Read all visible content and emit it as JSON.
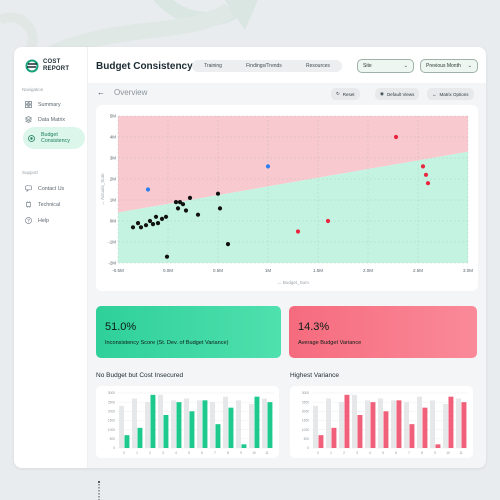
{
  "app": {
    "logo_line1": "COST",
    "logo_line2": "REPORT"
  },
  "sidebar": {
    "nav_title": "Navigation",
    "items": [
      {
        "label": "Summary",
        "icon": "grid-icon"
      },
      {
        "label": "Data Matrix",
        "icon": "stack-icon"
      },
      {
        "label_line1": "Budget",
        "label_line2": "Consistency",
        "icon": "circle-check-icon",
        "active": true
      }
    ],
    "support_title": "Support",
    "support_items": [
      {
        "label": "Contact Us",
        "icon": "chat-icon"
      },
      {
        "label": "Technical",
        "icon": "chip-icon"
      },
      {
        "label": "Help",
        "icon": "help-icon"
      }
    ]
  },
  "header": {
    "title": "Budget Consistency",
    "tabs": [
      "Training",
      "Findings/Trends",
      "Resources"
    ],
    "site_select": "Site",
    "period_select": "Previous Month"
  },
  "subheader": {
    "back_icon": "arrow-left-icon",
    "title": "Overview",
    "buttons": [
      {
        "label": "Reset",
        "icon": "refresh-icon"
      },
      {
        "label": "Default Views",
        "icon": "eye-icon"
      },
      {
        "label": "Matrix Options",
        "icon": "expand-icon"
      }
    ]
  },
  "chart_data": [
    {
      "type": "scatter",
      "xlabel": "Budget_Sum",
      "ylabel": "Actuals_Sum",
      "xticks": [
        "-0.5M",
        "0.0M",
        "0.5M",
        "1M",
        "1.5M",
        "2.0M",
        "2.5M",
        "3.0M"
      ],
      "yticks": [
        "5M",
        "4M",
        "3M",
        "2M",
        "1M",
        "0M",
        "-1M",
        "-2M"
      ],
      "xlim": [
        -0.5,
        3.0
      ],
      "ylim": [
        -2,
        5
      ],
      "grid": true,
      "regions": {
        "upper_color": "#f8c9cf",
        "lower_color": "#c4f3e1"
      },
      "boundary": {
        "x": [
          -0.5,
          3.0
        ],
        "y": [
          0.4,
          3.3
        ]
      },
      "series": [
        {
          "color": "#111111",
          "points": [
            [
              -0.35,
              -0.3
            ],
            [
              -0.3,
              -0.1
            ],
            [
              -0.27,
              -0.3
            ],
            [
              -0.22,
              -0.2
            ],
            [
              -0.18,
              0
            ],
            [
              -0.15,
              -0.15
            ],
            [
              -0.12,
              0.2
            ],
            [
              -0.1,
              -0.1
            ],
            [
              -0.06,
              0.1
            ],
            [
              -0.02,
              0.2
            ],
            [
              -0.01,
              -1.7
            ],
            [
              0.08,
              0.9
            ],
            [
              0.1,
              0.6
            ],
            [
              0.12,
              0.9
            ],
            [
              0.15,
              0.8
            ],
            [
              0.18,
              0.5
            ],
            [
              0.22,
              1.1
            ],
            [
              0.3,
              0.3
            ],
            [
              0.5,
              1.3
            ],
            [
              0.52,
              0.6
            ],
            [
              0.6,
              -1.1
            ]
          ]
        },
        {
          "color": "#2d7ff0",
          "points": [
            [
              -0.2,
              1.5
            ],
            [
              1.0,
              2.6
            ]
          ]
        },
        {
          "color": "#e8263d",
          "points": [
            [
              1.3,
              -0.5
            ],
            [
              1.6,
              0
            ],
            [
              2.28,
              4
            ],
            [
              2.55,
              2.6
            ],
            [
              2.58,
              2.2
            ],
            [
              2.6,
              1.8
            ]
          ]
        }
      ]
    },
    {
      "type": "bar",
      "title": "No Budget but Cost Insecured",
      "categories": [
        "0",
        "1",
        "2",
        "3",
        "4",
        "5",
        "6",
        "7",
        "8",
        "9",
        "10",
        "11"
      ],
      "yticks": [
        "3000",
        "2500",
        "2000",
        "1500",
        "1000",
        "500",
        "0"
      ],
      "ylim": [
        0,
        3000
      ],
      "series": [
        {
          "name": "",
          "color": "#e5e7e9",
          "values": [
            2300,
            2700,
            2500,
            2900,
            2600,
            2700,
            2600,
            2500,
            2800,
            2600,
            2400,
            2700
          ]
        },
        {
          "name": "",
          "color": "#1ec98e",
          "values": [
            700,
            1100,
            2900,
            1800,
            2500,
            2000,
            2600,
            1300,
            2200,
            200,
            2800,
            2500
          ]
        }
      ]
    },
    {
      "type": "bar",
      "title": "Highest Variance",
      "categories": [
        "0",
        "1",
        "2",
        "3",
        "4",
        "5",
        "6",
        "7",
        "8",
        "9",
        "10",
        "11"
      ],
      "yticks": [
        "3000",
        "2500",
        "2000",
        "1500",
        "1000",
        "500",
        "0"
      ],
      "ylim": [
        0,
        3000
      ],
      "series": [
        {
          "name": "",
          "color": "#e5e7e9",
          "values": [
            2300,
            2700,
            2500,
            2900,
            2600,
            2700,
            2600,
            2500,
            2800,
            2600,
            2400,
            2700
          ]
        },
        {
          "name": "",
          "color": "#f0607a",
          "values": [
            700,
            1100,
            2900,
            1800,
            2500,
            2000,
            2600,
            1300,
            2200,
            200,
            2800,
            2500
          ]
        }
      ]
    }
  ],
  "kpis": [
    {
      "value": "51.0%",
      "label": "Inconsistency Score (St. Dev. of Budget Variance)"
    },
    {
      "value": "14.3%",
      "label": "Average Budget Variance"
    }
  ]
}
